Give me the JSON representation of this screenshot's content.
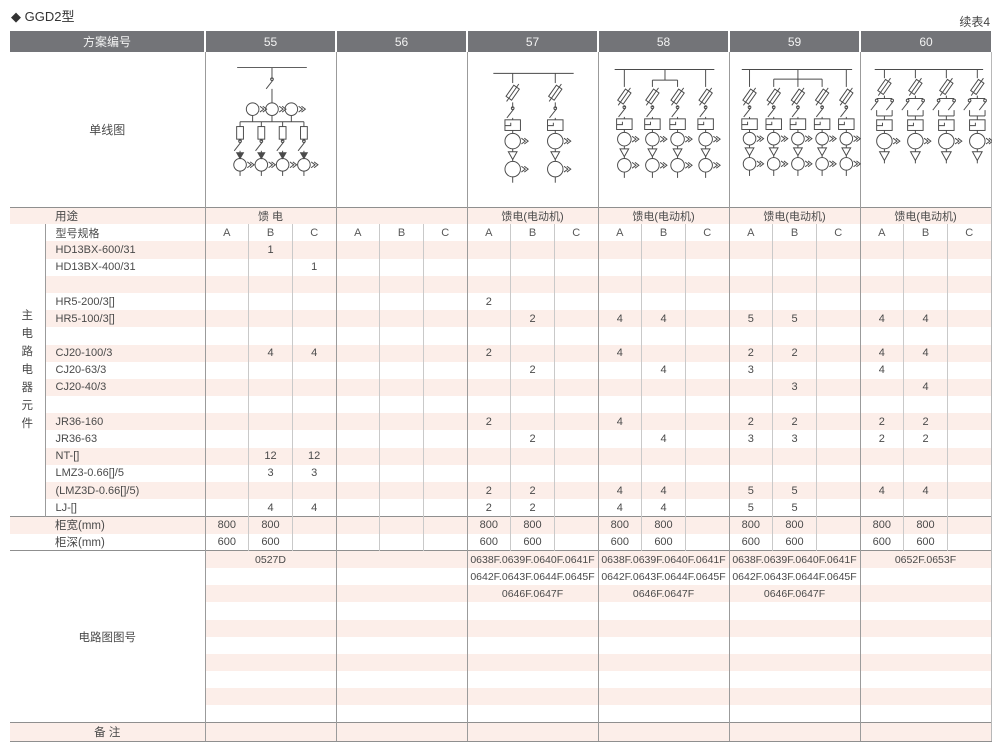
{
  "page": {
    "title": "◆ GGD2型",
    "continuation_note": "续表4"
  },
  "colors": {
    "header_bg": "#737478",
    "header_text": "#f2f2f2",
    "stripe_pink": "#fceee9",
    "grid_light": "#c9c9c9",
    "grid_dark": "#9b9b9b",
    "text": "#4a4a4a"
  },
  "header": {
    "label": "方案编号",
    "schemes": [
      "55",
      "56",
      "57",
      "58",
      "59",
      "60"
    ]
  },
  "diagram_row": {
    "label": "单线图",
    "diagrams": [
      "feeder-switch-4-branch",
      "empty",
      "motor-feeder-2-branch",
      "motor-feeder-4-branch",
      "motor-feeder-5-branch",
      "motor-feeder-4-branch-double-switch"
    ]
  },
  "usage_row": {
    "label": "用途",
    "values": [
      "馈 电",
      "",
      "馈电(电动机)",
      "馈电(电动机)",
      "馈电(电动机)",
      "馈电(电动机)"
    ]
  },
  "spec_row": {
    "label": "型号规格",
    "sub_columns": [
      "A",
      "B",
      "C"
    ]
  },
  "side_label": "主电路电器元件",
  "component_rows": [
    {
      "label": "HD13BX-600/31",
      "values": [
        "",
        "1",
        "",
        "",
        "",
        "",
        "",
        "",
        "",
        "",
        "",
        "",
        "",
        "",
        "",
        "",
        "",
        ""
      ]
    },
    {
      "label": "HD13BX-400/31",
      "values": [
        "",
        "",
        "1",
        "",
        "",
        "",
        "",
        "",
        "",
        "",
        "",
        "",
        "",
        "",
        "",
        "",
        "",
        ""
      ]
    },
    {
      "label": "",
      "values": [
        "",
        "",
        "",
        "",
        "",
        "",
        "",
        "",
        "",
        "",
        "",
        "",
        "",
        "",
        "",
        "",
        "",
        ""
      ]
    },
    {
      "label": "HR5-200/3[]",
      "values": [
        "",
        "",
        "",
        "",
        "",
        "",
        "2",
        "",
        "",
        "",
        "",
        "",
        "",
        "",
        "",
        "",
        "",
        ""
      ]
    },
    {
      "label": "HR5-100/3[]",
      "values": [
        "",
        "",
        "",
        "",
        "",
        "",
        "",
        "2",
        "",
        "4",
        "4",
        "",
        "5",
        "5",
        "",
        "4",
        "4",
        ""
      ]
    },
    {
      "label": "",
      "values": [
        "",
        "",
        "",
        "",
        "",
        "",
        "",
        "",
        "",
        "",
        "",
        "",
        "",
        "",
        "",
        "",
        "",
        ""
      ]
    },
    {
      "label": "CJ20-100/3",
      "values": [
        "",
        "4",
        "4",
        "",
        "",
        "",
        "2",
        "",
        "",
        "4",
        "",
        "",
        "2",
        "2",
        "",
        "4",
        "4",
        ""
      ]
    },
    {
      "label": "CJ20-63/3",
      "values": [
        "",
        "",
        "",
        "",
        "",
        "",
        "",
        "2",
        "",
        "",
        "4",
        "",
        "3",
        "",
        "",
        "4",
        "",
        ""
      ]
    },
    {
      "label": "CJ20-40/3",
      "values": [
        "",
        "",
        "",
        "",
        "",
        "",
        "",
        "",
        "",
        "",
        "",
        "",
        "",
        "3",
        "",
        "",
        "4",
        ""
      ]
    },
    {
      "label": "",
      "values": [
        "",
        "",
        "",
        "",
        "",
        "",
        "",
        "",
        "",
        "",
        "",
        "",
        "",
        "",
        "",
        "",
        "",
        ""
      ]
    },
    {
      "label": "JR36-160",
      "values": [
        "",
        "",
        "",
        "",
        "",
        "",
        "2",
        "",
        "",
        "4",
        "",
        "",
        "2",
        "2",
        "",
        "2",
        "2",
        ""
      ]
    },
    {
      "label": "JR36-63",
      "values": [
        "",
        "",
        "",
        "",
        "",
        "",
        "",
        "2",
        "",
        "",
        "4",
        "",
        "3",
        "3",
        "",
        "2",
        "2",
        ""
      ]
    },
    {
      "label": "NT-[]",
      "values": [
        "",
        "12",
        "12",
        "",
        "",
        "",
        "",
        "",
        "",
        "",
        "",
        "",
        "",
        "",
        "",
        "",
        "",
        ""
      ]
    },
    {
      "label": "LMZ3-0.66[]/5",
      "values": [
        "",
        "3",
        "3",
        "",
        "",
        "",
        "",
        "",
        "",
        "",
        "",
        "",
        "",
        "",
        "",
        "",
        "",
        ""
      ]
    },
    {
      "label": "(LMZ3D-0.66[]/5)",
      "values": [
        "",
        "",
        "",
        "",
        "",
        "",
        "2",
        "2",
        "",
        "4",
        "4",
        "",
        "5",
        "5",
        "",
        "4",
        "4",
        ""
      ]
    },
    {
      "label": "LJ-[]",
      "values": [
        "",
        "4",
        "4",
        "",
        "",
        "",
        "2",
        "2",
        "",
        "4",
        "4",
        "",
        "5",
        "5",
        "",
        "",
        "",
        ""
      ]
    }
  ],
  "cabinet_rows": [
    {
      "label": "柜宽(mm)",
      "values": [
        "800",
        "800",
        "",
        "",
        "",
        "",
        "800",
        "800",
        "",
        "800",
        "800",
        "",
        "800",
        "800",
        "",
        "800",
        "800",
        ""
      ]
    },
    {
      "label": "柜深(mm)",
      "values": [
        "600",
        "600",
        "",
        "",
        "",
        "",
        "600",
        "600",
        "",
        "600",
        "600",
        "",
        "600",
        "600",
        "",
        "600",
        "600",
        ""
      ]
    }
  ],
  "circuit_section": {
    "label": "电路图图号",
    "rows": [
      [
        "0527D",
        "",
        "0638F.0639F.0640F.0641F",
        "0638F.0639F.0640F.0641F",
        "0638F.0639F.0640F.0641F",
        "0652F.0653F"
      ],
      [
        "",
        "",
        "0642F.0643F.0644F.0645F",
        "0642F.0643F.0644F.0645F",
        "0642F.0643F.0644F.0645F",
        ""
      ],
      [
        "",
        "",
        "0646F.0647F",
        "0646F.0647F",
        "0646F.0647F",
        ""
      ],
      [
        "",
        "",
        "",
        "",
        "",
        ""
      ],
      [
        "",
        "",
        "",
        "",
        "",
        ""
      ],
      [
        "",
        "",
        "",
        "",
        "",
        ""
      ],
      [
        "",
        "",
        "",
        "",
        "",
        ""
      ],
      [
        "",
        "",
        "",
        "",
        "",
        ""
      ],
      [
        "",
        "",
        "",
        "",
        "",
        ""
      ],
      [
        "",
        "",
        "",
        "",
        "",
        ""
      ]
    ]
  },
  "remark_row": {
    "label": "备 注",
    "values": [
      "",
      "",
      "",
      "",
      "",
      ""
    ]
  }
}
